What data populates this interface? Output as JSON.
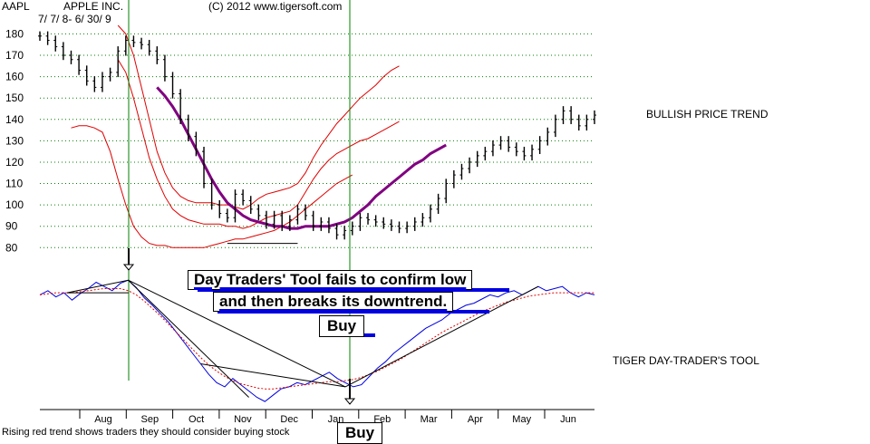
{
  "header": {
    "ticker": "AAPL",
    "company": "APPLE INC.",
    "date_range": "7/ 7/ 8- 6/ 30/ 9",
    "copyright": "(C) 2012 www.tigersoft.com"
  },
  "labels": {
    "price_trend": "BULLISH PRICE TREND",
    "indicator_name": "TIGER DAY-TRADER'S TOOL"
  },
  "annotations": {
    "callout_line1": "Day Traders' Tool fails to confirm low",
    "callout_line2": "and then breaks its downtrend.",
    "buy_label_1": "Buy",
    "buy_label_2": "Buy"
  },
  "footer": {
    "note": "Rising red trend shows traders they should consider buying stock"
  },
  "colors": {
    "price_bars": "#000000",
    "moving_average": "#800080",
    "bands": "#e00000",
    "indicator_line": "#0000e0",
    "indicator_ma": "#e00000",
    "gridline": "#008000",
    "signal_line": "#008000",
    "underline": "#0000e0"
  },
  "chart_data": [
    {
      "type": "line",
      "title": "APPLE INC.",
      "subtitle": "7/ 7/ 8- 6/ 30/ 9",
      "xlabel": "",
      "ylabel": "",
      "ylim": [
        78,
        184
      ],
      "yticks": [
        80,
        90,
        100,
        110,
        120,
        130,
        140,
        150,
        160,
        170,
        180
      ],
      "months": [
        "Aug",
        "Sep",
        "Oct",
        "Nov",
        "Dec",
        "Jan",
        "Feb",
        "Mar",
        "Apr",
        "May",
        "Jun"
      ],
      "grid": true,
      "x_index_range": [
        0,
        51
      ],
      "series": [
        {
          "name": "",
          "kind": "price_bars",
          "values": [
            179,
            177,
            174,
            170,
            168,
            163,
            158,
            155,
            160,
            162,
            172,
            177,
            176,
            175,
            172,
            168,
            160,
            152,
            140,
            132,
            125,
            110,
            100,
            96,
            94,
            105,
            102,
            98,
            95,
            91,
            95,
            90,
            93,
            98,
            95,
            90,
            92,
            89,
            86,
            88,
            90,
            94,
            93,
            92,
            91,
            90,
            89,
            90,
            92,
            94,
            98,
            103,
            110,
            114,
            117,
            120,
            123,
            125,
            128,
            130,
            127,
            125,
            123,
            126,
            130,
            134,
            140,
            144,
            140,
            137,
            140,
            142
          ]
        },
        {
          "name": "",
          "kind": "moving_average",
          "start_index": 15,
          "values": [
            155,
            151,
            146,
            140,
            133,
            126,
            119,
            112,
            106,
            101,
            98,
            95,
            93,
            92,
            91,
            90,
            90,
            89,
            89,
            90,
            90,
            90,
            90,
            91,
            92,
            94,
            97,
            100,
            104,
            107,
            110,
            113,
            116,
            119,
            121,
            124,
            126,
            128
          ]
        },
        {
          "name": "",
          "kind": "upper_band",
          "start_index": 10,
          "values": [
            184,
            180,
            170,
            155,
            140,
            125,
            115,
            108,
            104,
            102,
            101,
            101,
            101,
            100,
            100,
            99,
            98,
            100,
            103,
            105,
            106,
            107,
            108,
            110,
            115,
            122,
            128,
            133,
            138,
            142,
            146,
            150,
            153,
            156,
            160,
            163,
            165
          ]
        },
        {
          "name": "",
          "kind": "middle_band",
          "start_index": 10,
          "values": [
            168,
            162,
            150,
            136,
            122,
            112,
            104,
            98,
            95,
            93,
            92,
            91,
            91,
            91,
            90,
            90,
            89,
            90,
            92,
            94,
            95,
            96,
            97,
            100,
            106,
            112,
            117,
            121,
            124,
            126,
            128,
            130,
            131,
            133,
            135,
            137,
            139
          ]
        },
        {
          "name": "",
          "kind": "lower_band",
          "start_index": 4,
          "values": [
            136,
            137,
            137,
            136,
            134,
            125,
            112,
            100,
            90,
            85,
            82,
            81,
            81,
            80,
            80,
            80,
            80,
            80,
            81,
            82,
            83,
            84,
            84,
            85,
            86,
            87,
            88,
            90,
            92,
            95,
            98,
            101,
            104,
            107,
            110,
            112,
            114
          ]
        }
      ]
    },
    {
      "type": "line",
      "title": "TIGER DAY-TRADER'S TOOL",
      "xlabel": "",
      "ylabel": "",
      "series": [
        {
          "name": "",
          "kind": "indicator",
          "values": [
            0.58,
            0.62,
            0.56,
            0.6,
            0.53,
            0.59,
            0.64,
            0.7,
            0.66,
            0.62,
            0.69,
            0.72,
            0.65,
            0.55,
            0.48,
            0.4,
            0.32,
            0.22,
            0.12,
            0.02,
            -0.08,
            -0.18,
            -0.26,
            -0.3,
            -0.22,
            -0.28,
            -0.34,
            -0.4,
            -0.44,
            -0.38,
            -0.32,
            -0.3,
            -0.26,
            -0.28,
            -0.24,
            -0.2,
            -0.16,
            -0.22,
            -0.26,
            -0.3,
            -0.28,
            -0.2,
            -0.12,
            -0.06,
            0.02,
            0.08,
            0.14,
            0.2,
            0.26,
            0.3,
            0.34,
            0.4,
            0.44,
            0.48,
            0.5,
            0.54,
            0.58,
            0.56,
            0.6,
            0.62,
            0.58,
            0.62,
            0.66,
            0.62,
            0.64,
            0.66,
            0.6,
            0.56,
            0.6,
            0.58
          ]
        },
        {
          "name": "",
          "kind": "indicator_ma",
          "values": [
            0.58,
            0.59,
            0.6,
            0.6,
            0.6,
            0.61,
            0.62,
            0.63,
            0.64,
            0.64,
            0.64,
            0.62,
            0.58,
            0.52,
            0.45,
            0.38,
            0.3,
            0.22,
            0.14,
            0.06,
            -0.02,
            -0.09,
            -0.15,
            -0.2,
            -0.24,
            -0.27,
            -0.29,
            -0.31,
            -0.32,
            -0.32,
            -0.31,
            -0.3,
            -0.29,
            -0.28,
            -0.27,
            -0.26,
            -0.25,
            -0.25,
            -0.24,
            -0.23,
            -0.21,
            -0.18,
            -0.15,
            -0.11,
            -0.07,
            -0.03,
            0.02,
            0.07,
            0.12,
            0.17,
            0.22,
            0.26,
            0.3,
            0.34,
            0.38,
            0.42,
            0.45,
            0.48,
            0.51,
            0.53,
            0.55,
            0.57,
            0.58,
            0.59,
            0.6,
            0.6,
            0.6,
            0.6,
            0.6,
            0.6
          ]
        }
      ]
    }
  ]
}
